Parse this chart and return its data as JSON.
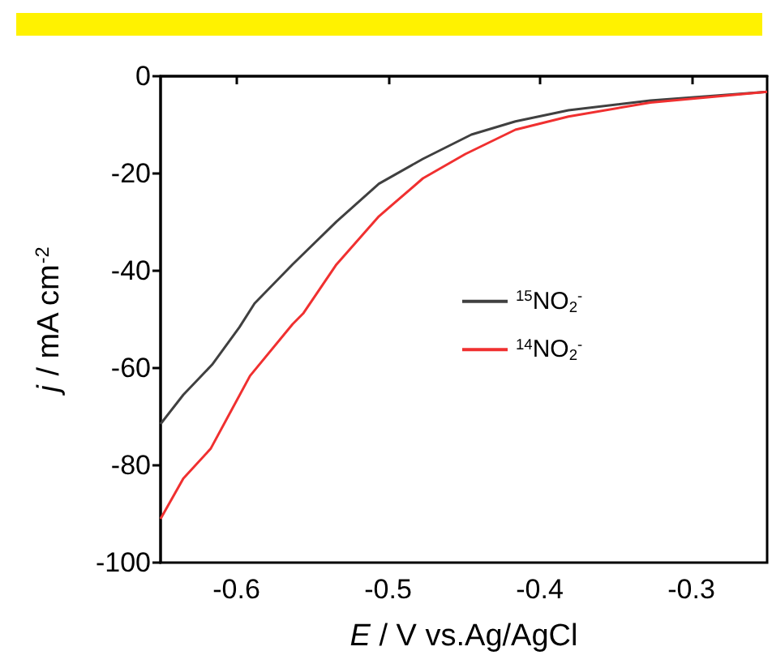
{
  "chart_data": {
    "type": "line",
    "xlabel": "E / V vs.Ag/AgCl",
    "ylabel": "j / mA cm$^{-2}$",
    "xlim": [
      -0.65,
      -0.25
    ],
    "xticks": [
      -0.6,
      -0.5,
      -0.4,
      -0.3
    ],
    "ylim": [
      -100,
      0
    ],
    "yticks": [
      -100,
      -80,
      -60,
      -40,
      -20,
      0
    ],
    "grid": false,
    "legend": "right",
    "marker": "none",
    "line_style": "solid",
    "series": [
      {
        "name": "$^{15}$NO$_{2}$$^{-}$",
        "color": "#404040",
        "x": [
          -0.65,
          -0.635,
          -0.616,
          -0.598,
          -0.588,
          -0.563,
          -0.534,
          -0.506,
          -0.477,
          -0.445,
          -0.416,
          -0.381,
          -0.327,
          -0.25
        ],
        "values": [
          -71.5,
          -65.5,
          -59.3,
          -51.6,
          -46.7,
          -38.7,
          -29.9,
          -22.1,
          -17,
          -12,
          -9.3,
          -7,
          -5,
          -3.2
        ]
      },
      {
        "name": "$^{14}$NO$_{2}$$^{-}$",
        "color": "#f03030",
        "x": [
          -0.65,
          -0.635,
          -0.617,
          -0.591,
          -0.563,
          -0.556,
          -0.534,
          -0.506,
          -0.477,
          -0.449,
          -0.416,
          -0.381,
          -0.327,
          -0.25
        ],
        "values": [
          -91,
          -82.7,
          -76.6,
          -61.6,
          -51,
          -48.8,
          -38.7,
          -28.8,
          -21,
          -16,
          -11,
          -8.3,
          -5.4,
          -3.2
        ]
      }
    ]
  }
}
